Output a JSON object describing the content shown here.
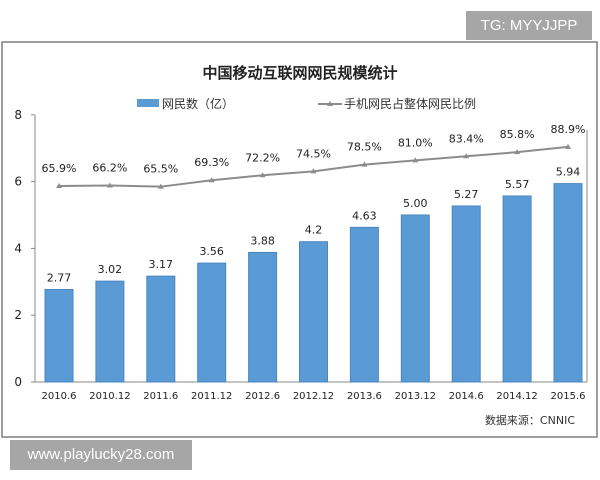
{
  "watermarks": {
    "top": "TG: MYYJJPP",
    "bottom": "www.playlucky28.com"
  },
  "chart_data": {
    "type": "bar+line",
    "title": "中国移动互联网网民规模统计",
    "categories": [
      "2010.6",
      "2010.12",
      "2011.6",
      "2011.12",
      "2012.6",
      "2012.12",
      "2013.6",
      "2013.12",
      "2014.6",
      "2014.12",
      "2015.6"
    ],
    "series": [
      {
        "name": "网民数（亿）",
        "type": "bar",
        "color": "#5b9bd5",
        "values": [
          2.77,
          3.02,
          3.17,
          3.56,
          3.88,
          4.2,
          4.63,
          5.0,
          5.27,
          5.57,
          5.94
        ],
        "labels": [
          "2.77",
          "3.02",
          "3.17",
          "3.56",
          "3.88",
          "4.2",
          "4.63",
          "5.00",
          "5.27",
          "5.57",
          "5.94"
        ]
      },
      {
        "name": "手机网民占整体网民比例",
        "type": "line",
        "color": "#8c8c8c",
        "values": [
          65.9,
          66.2,
          65.5,
          69.3,
          72.2,
          74.5,
          78.5,
          81.0,
          83.4,
          85.8,
          88.9
        ],
        "labels": [
          "65.9%",
          "66.2%",
          "65.5%",
          "69.3%",
          "72.2%",
          "74.5%",
          "78.5%",
          "81.0%",
          "83.4%",
          "85.8%",
          "88.9%"
        ]
      }
    ],
    "ylim": [
      0,
      8
    ],
    "yticks": [
      "0",
      "2",
      "4",
      "6",
      "8"
    ],
    "grid": false,
    "legend": "top",
    "source": "数据来源：CNNIC"
  }
}
